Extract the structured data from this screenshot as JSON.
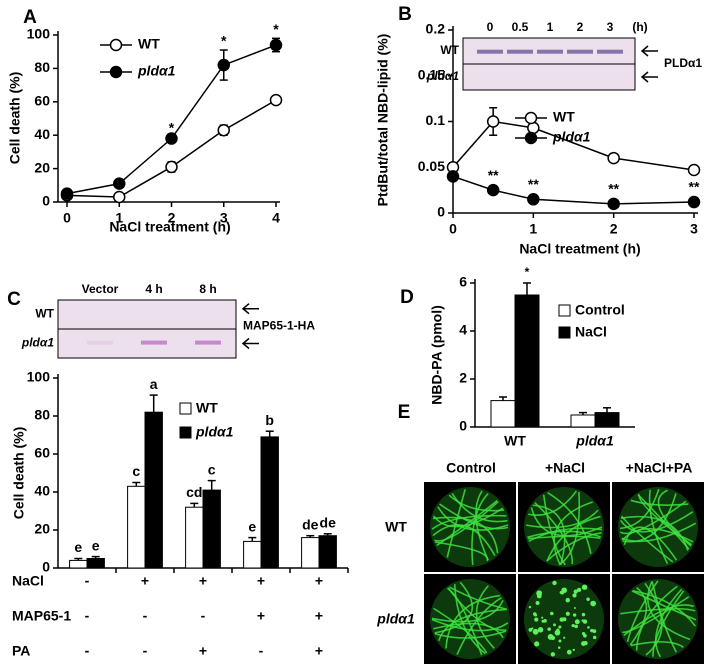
{
  "chart_data": [
    {
      "type": "line",
      "panel": "A",
      "xlabel": "NaCl treatment (h)",
      "ylabel": "Cell death (%)",
      "x": [
        0,
        1,
        2,
        3,
        4
      ],
      "xlim": [
        0,
        4
      ],
      "xticks": [
        0,
        1,
        2,
        3,
        4
      ],
      "ylim": [
        0,
        100
      ],
      "yticks": [
        0,
        20,
        40,
        60,
        80,
        100
      ],
      "legend": "upper left",
      "series": [
        {
          "name": "WT",
          "color": "#ffffff",
          "values": [
            4,
            3,
            21,
            43,
            61
          ],
          "errors": [
            1,
            1,
            3,
            3,
            1
          ]
        },
        {
          "name": "pldα1",
          "color": "#000000",
          "values": [
            5,
            11,
            38,
            82,
            94
          ],
          "errors": [
            1,
            1,
            1,
            9,
            4
          ],
          "annotations": [
            null,
            null,
            "*",
            "*",
            "*"
          ]
        }
      ]
    },
    {
      "type": "line",
      "panel": "B",
      "xlabel": "NaCl treatment  (h)",
      "ylabel": "PtdBut/total NBD-lipid (%)",
      "x": [
        0,
        0.5,
        1,
        2,
        3
      ],
      "xlim": [
        0,
        3
      ],
      "xticks": [
        0,
        1,
        2,
        3
      ],
      "ylim": [
        0,
        0.2
      ],
      "yticks": [
        0,
        0.05,
        0.1,
        0.15,
        0.2
      ],
      "legend": "center right",
      "series": [
        {
          "name": "WT",
          "color": "#ffffff",
          "values": [
            0.05,
            0.1,
            0.093,
            0.06,
            0.047
          ],
          "errors": [
            0.005,
            0.015,
            0.003,
            0.002,
            0.002
          ]
        },
        {
          "name": "pldα1",
          "color": "#000000",
          "values": [
            0.04,
            0.025,
            0.015,
            0.01,
            0.012
          ],
          "errors": [
            0.002,
            0.002,
            0.001,
            0.001,
            0.001
          ],
          "annotations": [
            null,
            "**",
            "**",
            "**",
            "**"
          ]
        }
      ],
      "inset": {
        "lanes": [
          "0",
          "0.5",
          "1",
          "2",
          "3"
        ],
        "unit": "(h)",
        "rows": [
          "WT",
          "pldα1"
        ],
        "protein": "PLDα1"
      }
    },
    {
      "type": "bar",
      "panel": "C",
      "ylabel": "Cell death (%)",
      "categories": [
        null,
        null,
        null,
        null,
        null
      ],
      "ylim": [
        0,
        100
      ],
      "yticks": [
        0,
        20,
        40,
        60,
        80,
        100
      ],
      "legend": "upper center",
      "series": [
        {
          "name": "WT",
          "color": "#ffffff",
          "values": [
            4,
            43,
            32,
            14,
            16
          ],
          "errors": [
            1,
            2,
            2,
            2,
            1
          ],
          "annotations": [
            "e",
            "c",
            "cd",
            "e",
            "de"
          ]
        },
        {
          "name": "pldα1",
          "color": "#000000",
          "values": [
            5,
            82,
            41,
            69,
            17
          ],
          "errors": [
            1,
            9,
            5,
            3,
            1
          ],
          "annotations": [
            "e",
            "a",
            "c",
            "b",
            "de"
          ]
        }
      ],
      "treatments": [
        {
          "name": "NaCl",
          "values": [
            "-",
            "+",
            "+",
            "+",
            "+"
          ]
        },
        {
          "name": "MAP65-1",
          "values": [
            "-",
            "-",
            "-",
            "+",
            "+"
          ]
        },
        {
          "name": "PA",
          "values": [
            "-",
            "-",
            "+",
            "-",
            "+"
          ]
        }
      ],
      "inset": {
        "lanes": [
          "Vector",
          "4 h",
          "8 h"
        ],
        "rows": [
          "WT",
          "pldα1"
        ],
        "protein": "MAP65-1-HA"
      }
    },
    {
      "type": "bar",
      "panel": "D",
      "ylabel": "NBD-PA (pmol)",
      "categories": [
        "WT",
        "pldα1"
      ],
      "ylim": [
        0,
        6
      ],
      "yticks": [
        0,
        2,
        4,
        6
      ],
      "legend": "upper right",
      "series": [
        {
          "name": "Control",
          "color": "#ffffff",
          "values": [
            1.1,
            0.5
          ],
          "errors": [
            0.15,
            0.1
          ]
        },
        {
          "name": "NaCl",
          "color": "#000000",
          "values": [
            5.5,
            0.6
          ],
          "errors": [
            0.5,
            0.2
          ],
          "annotations": [
            "*",
            null
          ]
        }
      ]
    }
  ],
  "panel_e": {
    "panel": "E",
    "columns": [
      "Control",
      "+NaCl",
      "+NaCl+PA"
    ],
    "rows": [
      "WT",
      "pldα1"
    ]
  }
}
